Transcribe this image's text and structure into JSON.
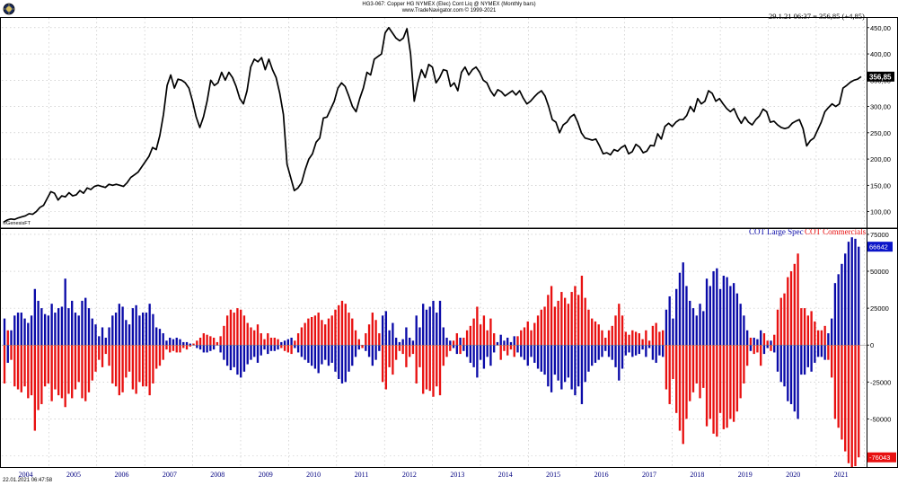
{
  "header": {
    "title": "HG3-067:  Copper HG NYMEX (Elec) Cont Liq @ NYMEX  (Monthly bars)",
    "subtitle": "www.TradeNavigator.com © 1999-2021"
  },
  "quote_readout": "29.1.21 06:37 = 356,85 (+4,85)",
  "watermark": "©GenesisFT",
  "timestamp": "22.01.2021 06:47:58",
  "colors": {
    "price_line": "#000000",
    "large_spec": "#0a0aa8",
    "commercials": "#e81010",
    "grid": "#bdbdbd"
  },
  "chart_data": [
    {
      "type": "line",
      "name": "price-panel",
      "series": [
        {
          "name": "",
          "values": [
            80,
            84,
            86,
            85,
            88,
            90,
            92,
            96,
            95,
            100,
            108,
            112,
            125,
            138,
            135,
            122,
            130,
            128,
            136,
            130,
            132,
            140,
            135,
            145,
            142,
            148,
            150,
            148,
            146,
            152,
            150,
            152,
            150,
            148,
            155,
            165,
            170,
            175,
            185,
            195,
            205,
            222,
            218,
            245,
            285,
            340,
            360,
            335,
            352,
            350,
            345,
            335,
            310,
            280,
            260,
            280,
            310,
            350,
            340,
            345,
            365,
            350,
            365,
            355,
            338,
            315,
            305,
            330,
            375,
            390,
            385,
            393,
            370,
            390,
            370,
            355,
            325,
            285,
            190,
            165,
            140,
            145,
            155,
            180,
            200,
            210,
            232,
            240,
            278,
            280,
            295,
            310,
            335,
            345,
            338,
            320,
            300,
            290,
            315,
            335,
            365,
            360,
            390,
            395,
            400,
            440,
            450,
            440,
            430,
            425,
            430,
            448,
            400,
            310,
            345,
            370,
            355,
            380,
            375,
            345,
            355,
            370,
            368,
            338,
            345,
            330,
            365,
            375,
            360,
            370,
            375,
            365,
            350,
            345,
            330,
            320,
            332,
            328,
            320,
            325,
            330,
            322,
            330,
            316,
            305,
            310,
            318,
            325,
            330,
            320,
            300,
            275,
            270,
            250,
            265,
            270,
            280,
            285,
            270,
            250,
            240,
            238,
            236,
            238,
            225,
            210,
            212,
            208,
            218,
            215,
            222,
            226,
            210,
            214,
            228,
            223,
            212,
            215,
            226,
            225,
            248,
            238,
            262,
            268,
            262,
            270,
            275,
            275,
            283,
            300,
            290,
            315,
            305,
            310,
            330,
            325,
            310,
            315,
            305,
            296,
            290,
            296,
            280,
            268,
            280,
            270,
            265,
            275,
            282,
            295,
            290,
            270,
            272,
            265,
            260,
            258,
            260,
            268,
            272,
            275,
            258,
            225,
            235,
            240,
            255,
            270,
            290,
            298,
            305,
            300,
            305,
            335,
            340,
            346,
            350,
            352,
            356.85
          ]
        }
      ],
      "y_ticks": [
        "100,00",
        "150,00",
        "200,00",
        "250,00",
        "300,00",
        "350,00",
        "400,00",
        "450,00"
      ],
      "last_value_label": "356,85",
      "x_range": [
        2003.02,
        2021.05
      ],
      "ylim": [
        72,
        465
      ],
      "grid": true
    },
    {
      "type": "bar",
      "name": "cot-panel",
      "legend": [
        "COT Large Spec",
        "COT Commercials"
      ],
      "legend_position": "top-right",
      "series": [
        {
          "name": "COT Large Spec",
          "values": [
            18000,
            -12000,
            10000,
            20000,
            22000,
            22000,
            18000,
            15000,
            20000,
            38000,
            30000,
            25000,
            21000,
            20000,
            28000,
            22000,
            25000,
            26000,
            45000,
            25000,
            30000,
            22000,
            20000,
            30000,
            32000,
            25000,
            18000,
            14000,
            6000,
            12000,
            5000,
            12000,
            20000,
            22000,
            28000,
            26000,
            17000,
            14000,
            25000,
            27000,
            20000,
            22000,
            22000,
            28000,
            21000,
            12000,
            11000,
            8000,
            3000,
            5000,
            4000,
            5000,
            4000,
            2000,
            2000,
            1000,
            0,
            -2000,
            -3000,
            -5000,
            -5000,
            -4000,
            -3000,
            0,
            -5000,
            -10000,
            -14000,
            -17000,
            -15000,
            -20000,
            -22000,
            -18000,
            -13000,
            -10000,
            -8000,
            -12000,
            -7000,
            -3000,
            -6000,
            -4000,
            -4000,
            -3000,
            2000,
            3000,
            4000,
            5000,
            -2000,
            -5000,
            -8000,
            -10000,
            -12000,
            -14000,
            -16000,
            -19000,
            -13000,
            -10000,
            -14000,
            -12000,
            -18000,
            -23000,
            -26000,
            -25000,
            -18000,
            -14000,
            -8000,
            -3000,
            0,
            -4000,
            -8000,
            -14000,
            -10000,
            -4000,
            20000,
            23000,
            10000,
            15000,
            5000,
            2000,
            4000,
            12000,
            5000,
            3000,
            20000,
            12000,
            28000,
            24000,
            26000,
            30000,
            22000,
            30000,
            12000,
            5000,
            3000,
            -2000,
            -6000,
            5000,
            -4000,
            -8000,
            -12000,
            -15000,
            -22000,
            -10000,
            -16000,
            -8000,
            -14000,
            -5000,
            2000,
            7000,
            3000,
            5000,
            2000,
            6000,
            -5000,
            -8000,
            -10000,
            -14000,
            -8000,
            -12000,
            -16000,
            -18000,
            -20000,
            -28000,
            -32000,
            -20000,
            -24000,
            -30000,
            -25000,
            -22000,
            -30000,
            -34000,
            -28000,
            -40000,
            -25000,
            -18000,
            -14000,
            -12000,
            -10000,
            -8000,
            -4000,
            -8000,
            -10000,
            -15000,
            -24000,
            -16000,
            -7000,
            -5000,
            -8000,
            -7000,
            -6000,
            -3000,
            -8000,
            -2000,
            -10000,
            -12000,
            -7000,
            -8000,
            24000,
            33000,
            18000,
            38000,
            49000,
            56000,
            40000,
            30000,
            25000,
            20000,
            28000,
            23000,
            45000,
            40000,
            50000,
            52000,
            38000,
            47000,
            46000,
            40000,
            42000,
            35000,
            28000,
            20000,
            10000,
            -4000,
            5000,
            4000,
            10000,
            -6000,
            -2000,
            3000,
            -5000,
            -18000,
            -25000,
            -28000,
            -38000,
            -40000,
            -45000,
            -50000,
            -20000,
            -20000,
            -15000,
            -18000,
            -12000,
            -8000,
            -8000,
            -10000,
            8000,
            18000,
            42000,
            48000,
            55000,
            62000,
            70000,
            73000,
            72000,
            66642
          ]
        },
        {
          "name": "COT Commercials",
          "values": [
            -26000,
            10000,
            -10000,
            -28000,
            -30000,
            -32000,
            -28000,
            -36000,
            -34000,
            -58000,
            -44000,
            -40000,
            -28000,
            -26000,
            -38000,
            -30000,
            -34000,
            -36000,
            -42000,
            -33000,
            -36000,
            -30000,
            -25000,
            -36000,
            -38000,
            -32000,
            -24000,
            -18000,
            -10000,
            -15000,
            -6000,
            -14000,
            -26000,
            -28000,
            -34000,
            -32000,
            -22000,
            -18000,
            -30000,
            -33000,
            -25000,
            -28000,
            -28000,
            -34000,
            -26000,
            -16000,
            -14000,
            -10000,
            -3000,
            -5000,
            -4000,
            -5000,
            -5000,
            -2000,
            -3000,
            -1000,
            1000,
            3000,
            5000,
            8000,
            7000,
            6000,
            5000,
            2000,
            6000,
            13000,
            20000,
            24000,
            22000,
            25000,
            24000,
            20000,
            15000,
            12000,
            10000,
            14000,
            8000,
            4000,
            8000,
            5000,
            5000,
            4000,
            -2000,
            -4000,
            -5000,
            -6000,
            3000,
            8000,
            12000,
            15000,
            18000,
            19000,
            20000,
            22000,
            17000,
            14000,
            18000,
            20000,
            24000,
            27000,
            30000,
            28000,
            22000,
            18000,
            10000,
            4000,
            -2000,
            8000,
            14000,
            22000,
            17000,
            8000,
            -25000,
            -30000,
            -15000,
            -20000,
            -10000,
            -4000,
            -6000,
            -15000,
            -8000,
            -6000,
            -26000,
            -15000,
            -33000,
            -30000,
            -31000,
            -35000,
            -28000,
            -34000,
            -14000,
            -8000,
            -4000,
            3000,
            8000,
            -6000,
            5000,
            10000,
            13000,
            18000,
            26000,
            14000,
            20000,
            10000,
            18000,
            8000,
            0,
            -10000,
            -4000,
            -7000,
            -3000,
            -8000,
            6000,
            10000,
            12000,
            16000,
            10000,
            15000,
            20000,
            24000,
            26000,
            34000,
            40000,
            26000,
            30000,
            36000,
            32000,
            28000,
            36000,
            40000,
            34000,
            47000,
            32000,
            24000,
            18000,
            16000,
            14000,
            10000,
            5000,
            10000,
            13000,
            20000,
            28000,
            20000,
            9000,
            7000,
            10000,
            9000,
            8000,
            4000,
            10000,
            3000,
            13000,
            15000,
            9000,
            10000,
            -30000,
            -40000,
            -23000,
            -46000,
            -58000,
            -67000,
            -50000,
            -38000,
            -32000,
            -26000,
            -36000,
            -29000,
            -55000,
            -50000,
            -60000,
            -62000,
            -46000,
            -57000,
            -56000,
            -50000,
            -52000,
            -45000,
            -36000,
            -26000,
            -14000,
            5000,
            -6000,
            -5000,
            -14000,
            8000,
            3000,
            -4000,
            7000,
            24000,
            32000,
            35000,
            46000,
            50000,
            55000,
            62000,
            25000,
            25000,
            20000,
            23000,
            16000,
            10000,
            10000,
            13000,
            -10000,
            -22000,
            -50000,
            -56000,
            -64000,
            -72000,
            -80000,
            -83000,
            -82000,
            -76043
          ]
        }
      ],
      "y_ticks": [
        "-75000",
        "-50000",
        "-25000",
        "0",
        "25000",
        "50000",
        "75000"
      ],
      "last_value_labels": {
        "large_spec": "66642",
        "commercials": "-76043"
      },
      "x_range": [
        2003.02,
        2021.05
      ],
      "ylim": [
        -82000,
        78000
      ],
      "grid": true
    }
  ],
  "x_axis": {
    "year_labels": [
      {
        "year": 2004,
        "label": "2004"
      },
      {
        "year": 2005,
        "label": "2005"
      },
      {
        "year": 2006,
        "label": "2006"
      },
      {
        "year": 2007,
        "label": "2007"
      },
      {
        "year": 2008,
        "label": "2008"
      },
      {
        "year": 2009,
        "label": "2009"
      },
      {
        "year": 2010,
        "label": "2010"
      },
      {
        "year": 2011,
        "label": "2011"
      },
      {
        "year": 2012,
        "label": "2012"
      },
      {
        "year": 2013,
        "label": "2013"
      },
      {
        "year": 2014,
        "label": "2014"
      },
      {
        "year": 2015,
        "label": "2015"
      },
      {
        "year": 2016,
        "label": "2016"
      },
      {
        "year": 2017,
        "label": "2017"
      },
      {
        "year": 2018,
        "label": "2018"
      },
      {
        "year": 2019,
        "label": "2019"
      },
      {
        "year": 2020,
        "label": "2020"
      },
      {
        "year": 2021,
        "label": "2021"
      }
    ]
  }
}
